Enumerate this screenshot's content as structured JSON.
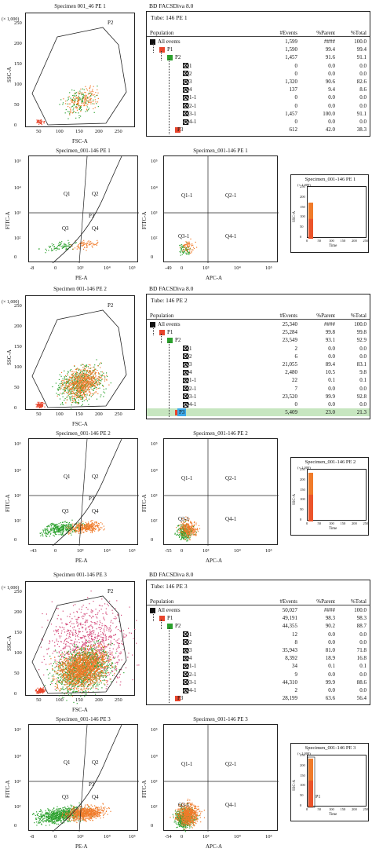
{
  "colors": {
    "p1": "#e8452c",
    "p2": "#2aa02c",
    "p3": "#f07b2a",
    "all": "#111111",
    "highlight": "#c7e6c0",
    "p3_selected": "#3da9e8",
    "gate": "#222222",
    "pink": "#d44a7a"
  },
  "sections": [
    {
      "app_title": "BD FACSDiva 8.0",
      "tube": "Tube: 146 PE 1",
      "scatter": {
        "title": "Specimen 001_46 PE 1",
        "xlabel": "FSC-A",
        "ylabel": "SSC-A",
        "yunit": "(× 1,000)",
        "xticks": [
          "50",
          "100",
          "150",
          "200",
          "250"
        ],
        "yticks": [
          "0",
          "50",
          "100",
          "150",
          "200",
          "250"
        ],
        "gate": "P2",
        "density": "low"
      },
      "pe_plot": {
        "title": "Specimen_001-146 PE 1",
        "xlabel": "PE-A",
        "ylabel": "FITC-A",
        "xticks": [
          "-8",
          "0",
          "10³",
          "10⁴",
          "10⁵"
        ],
        "yticks": [
          "0",
          "10²",
          "10³",
          "10⁴",
          "10⁵"
        ],
        "q1": "Q1",
        "q2": "Q2",
        "q3": "Q3",
        "q4": "Q4",
        "p3": "P3"
      },
      "apc_plot": {
        "title": "Specimen_001-146 PE 1",
        "xlabel": "APC-A",
        "ylabel": "FITC-A",
        "xticks": [
          "-49",
          "0",
          "10³",
          "10⁴",
          "10⁵"
        ],
        "yticks": [
          "0",
          "10²",
          "10³",
          "10⁴",
          "10⁵"
        ],
        "q1": "Q1-1",
        "q2": "Q2-1",
        "q3": "Q3-1",
        "q4": "Q4-1"
      },
      "time_plot": {
        "title": "Specimen_001-146 PE 1",
        "xlabel": "Time",
        "ylabel": "SSC-A",
        "yunit": "(× 1,000)",
        "xticks": [
          "0",
          "50",
          "100",
          "150",
          "200",
          "250"
        ],
        "yticks": [
          "0",
          "50",
          "100",
          "150",
          "200",
          "250"
        ],
        "gate": ""
      },
      "table": {
        "headers": {
          "population": "Population",
          "events": "#Events",
          "parent": "%Parent",
          "total": "%Total"
        },
        "rows": [
          {
            "name": "All events",
            "events": "1,599",
            "parent": "####",
            "total": "100.0"
          },
          {
            "name": "P1",
            "events": "1,590",
            "parent": "99.4",
            "total": "99.4"
          },
          {
            "name": "P2",
            "events": "1,457",
            "parent": "91.6",
            "total": "91.1"
          },
          {
            "name": "Q1",
            "events": "0",
            "parent": "0.0",
            "total": "0.0"
          },
          {
            "name": "Q2",
            "events": "0",
            "parent": "0.0",
            "total": "0.0"
          },
          {
            "name": "Q3",
            "events": "1,320",
            "parent": "90.6",
            "total": "82.6"
          },
          {
            "name": "Q4",
            "events": "137",
            "parent": "9.4",
            "total": "8.6"
          },
          {
            "name": "Q1-1",
            "events": "0",
            "parent": "0.0",
            "total": "0.0"
          },
          {
            "name": "Q2-1",
            "events": "0",
            "parent": "0.0",
            "total": "0.0"
          },
          {
            "name": "Q3-1",
            "events": "1,457",
            "parent": "100.0",
            "total": "91.1"
          },
          {
            "name": "Q4-1",
            "events": "0",
            "parent": "0.0",
            "total": "0.0"
          },
          {
            "name": "P3",
            "events": "612",
            "parent": "42.0",
            "total": "38.3"
          }
        ]
      }
    },
    {
      "app_title": "BD FACSDiva 8.0",
      "tube": "Tube: 146 PE 2",
      "scatter": {
        "title": "Specimen 001-146 PE 2",
        "xlabel": "FSC-A",
        "ylabel": "SSC-A",
        "yunit": "(× 1,000)",
        "xticks": [
          "50",
          "100",
          "150",
          "200",
          "250"
        ],
        "yticks": [
          "0",
          "50",
          "100",
          "150",
          "200",
          "250"
        ],
        "gate": "P2",
        "density": "mid"
      },
      "pe_plot": {
        "title": "Specimen_001-146 PE 2",
        "xlabel": "PE-A",
        "ylabel": "FITC-A",
        "xticks": [
          "-43",
          "0",
          "10³",
          "10⁴",
          "10⁵"
        ],
        "yticks": [
          "0",
          "10²",
          "10³",
          "10⁴",
          "10⁵"
        ],
        "q1": "Q1",
        "q2": "Q2",
        "q3": "Q3",
        "q4": "Q4",
        "p3": "P3"
      },
      "apc_plot": {
        "title": "Specimen_001-146 PE 2",
        "xlabel": "APC-A",
        "ylabel": "FITC-A",
        "xticks": [
          "-55",
          "0",
          "10³",
          "10⁴",
          "10⁵"
        ],
        "yticks": [
          "0",
          "10²",
          "10³",
          "10⁴",
          "10⁵"
        ],
        "q1": "Q1-1",
        "q2": "Q2-1",
        "q3": "Q3-1",
        "q4": "Q4-1"
      },
      "time_plot": {
        "title": "Specimen_001-146 PE 2",
        "xlabel": "Time",
        "ylabel": "SSC-A",
        "yunit": "(× 1,000)",
        "xticks": [
          "0",
          "50",
          "100",
          "150",
          "200",
          "250"
        ],
        "yticks": [
          "0",
          "50",
          "100",
          "150",
          "200",
          "250"
        ],
        "gate": ""
      },
      "table": {
        "headers": {
          "population": "Population",
          "events": "#Events",
          "parent": "%Parent",
          "total": "%Total"
        },
        "rows": [
          {
            "name": "All events",
            "events": "25,340",
            "parent": "####",
            "total": "100.0"
          },
          {
            "name": "P1",
            "events": "25,284",
            "parent": "99.8",
            "total": "99.8"
          },
          {
            "name": "P2",
            "events": "23,549",
            "parent": "93.1",
            "total": "92.9"
          },
          {
            "name": "Q1",
            "events": "2",
            "parent": "0.0",
            "total": "0.0"
          },
          {
            "name": "Q2",
            "events": "6",
            "parent": "0.0",
            "total": "0.0"
          },
          {
            "name": "Q3",
            "events": "21,055",
            "parent": "89.4",
            "total": "83.1"
          },
          {
            "name": "Q4",
            "events": "2,480",
            "parent": "10.5",
            "total": "9.8"
          },
          {
            "name": "Q1-1",
            "events": "22",
            "parent": "0.1",
            "total": "0.1"
          },
          {
            "name": "Q2-1",
            "events": "7",
            "parent": "0.0",
            "total": "0.0"
          },
          {
            "name": "Q3-1",
            "events": "23,520",
            "parent": "99.9",
            "total": "92.8"
          },
          {
            "name": "Q4-1",
            "events": "0",
            "parent": "0.0",
            "total": "0.0"
          },
          {
            "name": "P3",
            "events": "5,409",
            "parent": "23.0",
            "total": "21.3"
          }
        ]
      }
    },
    {
      "app_title": "BD FACSDiva 8.0",
      "tube": "Tube: 146 PE 3",
      "scatter": {
        "title": "Specimen 001-146 PE 3",
        "xlabel": "FSC-A",
        "ylabel": "SSC-A",
        "yunit": "(× 1,000)",
        "xticks": [
          "50",
          "100",
          "150",
          "200",
          "250"
        ],
        "yticks": [
          "0",
          "50",
          "100",
          "150",
          "200",
          "250"
        ],
        "gate": "P2",
        "density": "high"
      },
      "pe_plot": {
        "title": "Specimen_001-146 PE 3",
        "xlabel": "PE-A",
        "ylabel": "FITC-A",
        "xticks": [
          "-8",
          "0",
          "10³",
          "10⁴",
          "10⁵"
        ],
        "yticks": [
          "0",
          "10²",
          "10³",
          "10⁴",
          "10⁵"
        ],
        "q1": "Q1",
        "q2": "Q2",
        "q3": "Q3",
        "q4": "Q4",
        "p3": "P3"
      },
      "apc_plot": {
        "title": "Specimen_001-146 PE 3",
        "xlabel": "APC-A",
        "ylabel": "FITC-A",
        "xticks": [
          "-54",
          "0",
          "10³",
          "10⁴",
          "10⁵"
        ],
        "yticks": [
          "0",
          "10²",
          "10³",
          "10⁴",
          "10⁵"
        ],
        "q1": "Q1-1",
        "q2": "Q2-1",
        "q3": "Q3-1",
        "q4": "Q4-1"
      },
      "time_plot": {
        "title": "Specimen_001-146 PE 3",
        "xlabel": "Time",
        "ylabel": "SSC-A",
        "yunit": "(× 1,000)",
        "xticks": [
          "0",
          "50",
          "100",
          "150",
          "200",
          "250"
        ],
        "yticks": [
          "0",
          "50",
          "100",
          "150",
          "200",
          "250"
        ],
        "gate": "P1"
      },
      "table": {
        "headers": {
          "population": "Population",
          "events": "#Events",
          "parent": "%Parent",
          "total": "%Total"
        },
        "rows": [
          {
            "name": "All events",
            "events": "50,027",
            "parent": "####",
            "total": "100.0"
          },
          {
            "name": "P1",
            "events": "49,191",
            "parent": "98.3",
            "total": "98.3"
          },
          {
            "name": "P2",
            "events": "44,355",
            "parent": "90.2",
            "total": "88.7"
          },
          {
            "name": "Q1",
            "events": "12",
            "parent": "0.0",
            "total": "0.0"
          },
          {
            "name": "Q2",
            "events": "8",
            "parent": "0.0",
            "total": "0.0"
          },
          {
            "name": "Q3",
            "events": "35,943",
            "parent": "81.0",
            "total": "71.8"
          },
          {
            "name": "Q4",
            "events": "8,392",
            "parent": "18.9",
            "total": "16.8"
          },
          {
            "name": "Q1-1",
            "events": "34",
            "parent": "0.1",
            "total": "0.1"
          },
          {
            "name": "Q2-1",
            "events": "9",
            "parent": "0.0",
            "total": "0.0"
          },
          {
            "name": "Q3-1",
            "events": "44,310",
            "parent": "99.9",
            "total": "88.6"
          },
          {
            "name": "Q4-1",
            "events": "2",
            "parent": "0.0",
            "total": "0.0"
          },
          {
            "name": "P3",
            "events": "28,199",
            "parent": "63.6",
            "total": "56.4"
          }
        ]
      }
    }
  ],
  "chart_data": [
    {
      "type": "table",
      "title": "Tube: 146 PE 1",
      "columns": [
        "Population",
        "#Events",
        "%Parent",
        "%Total"
      ],
      "rows": [
        [
          "All events",
          1599,
          "####",
          100.0
        ],
        [
          "P1",
          1590,
          99.4,
          99.4
        ],
        [
          "P2",
          1457,
          91.6,
          91.1
        ],
        [
          "Q1",
          0,
          0.0,
          0.0
        ],
        [
          "Q2",
          0,
          0.0,
          0.0
        ],
        [
          "Q3",
          1320,
          90.6,
          82.6
        ],
        [
          "Q4",
          137,
          9.4,
          8.6
        ],
        [
          "Q1-1",
          0,
          0.0,
          0.0
        ],
        [
          "Q2-1",
          0,
          0.0,
          0.0
        ],
        [
          "Q3-1",
          1457,
          100.0,
          91.1
        ],
        [
          "Q4-1",
          0,
          0.0,
          0.0
        ],
        [
          "P3",
          612,
          42.0,
          38.3
        ]
      ]
    },
    {
      "type": "table",
      "title": "Tube: 146 PE 2",
      "columns": [
        "Population",
        "#Events",
        "%Parent",
        "%Total"
      ],
      "rows": [
        [
          "All events",
          25340,
          "####",
          100.0
        ],
        [
          "P1",
          25284,
          99.8,
          99.8
        ],
        [
          "P2",
          23549,
          93.1,
          92.9
        ],
        [
          "Q1",
          2,
          0.0,
          0.0
        ],
        [
          "Q2",
          6,
          0.0,
          0.0
        ],
        [
          "Q3",
          21055,
          89.4,
          83.1
        ],
        [
          "Q4",
          2480,
          10.5,
          9.8
        ],
        [
          "Q1-1",
          22,
          0.1,
          0.1
        ],
        [
          "Q2-1",
          7,
          0.0,
          0.0
        ],
        [
          "Q3-1",
          23520,
          99.9,
          92.8
        ],
        [
          "Q4-1",
          0,
          0.0,
          0.0
        ],
        [
          "P3",
          5409,
          23.0,
          21.3
        ]
      ]
    },
    {
      "type": "table",
      "title": "Tube: 146 PE 3",
      "columns": [
        "Population",
        "#Events",
        "%Parent",
        "%Total"
      ],
      "rows": [
        [
          "All events",
          50027,
          "####",
          100.0
        ],
        [
          "P1",
          49191,
          98.3,
          98.3
        ],
        [
          "P2",
          44355,
          90.2,
          88.7
        ],
        [
          "Q1",
          12,
          0.0,
          0.0
        ],
        [
          "Q2",
          8,
          0.0,
          0.0
        ],
        [
          "Q3",
          35943,
          81.0,
          71.8
        ],
        [
          "Q4",
          8392,
          18.9,
          16.8
        ],
        [
          "Q1-1",
          34,
          0.1,
          0.1
        ],
        [
          "Q2-1",
          9,
          0.0,
          0.0
        ],
        [
          "Q3-1",
          44310,
          99.9,
          88.6
        ],
        [
          "Q4-1",
          2,
          0.0,
          0.0
        ],
        [
          "P3",
          28199,
          63.6,
          56.4
        ]
      ]
    }
  ]
}
